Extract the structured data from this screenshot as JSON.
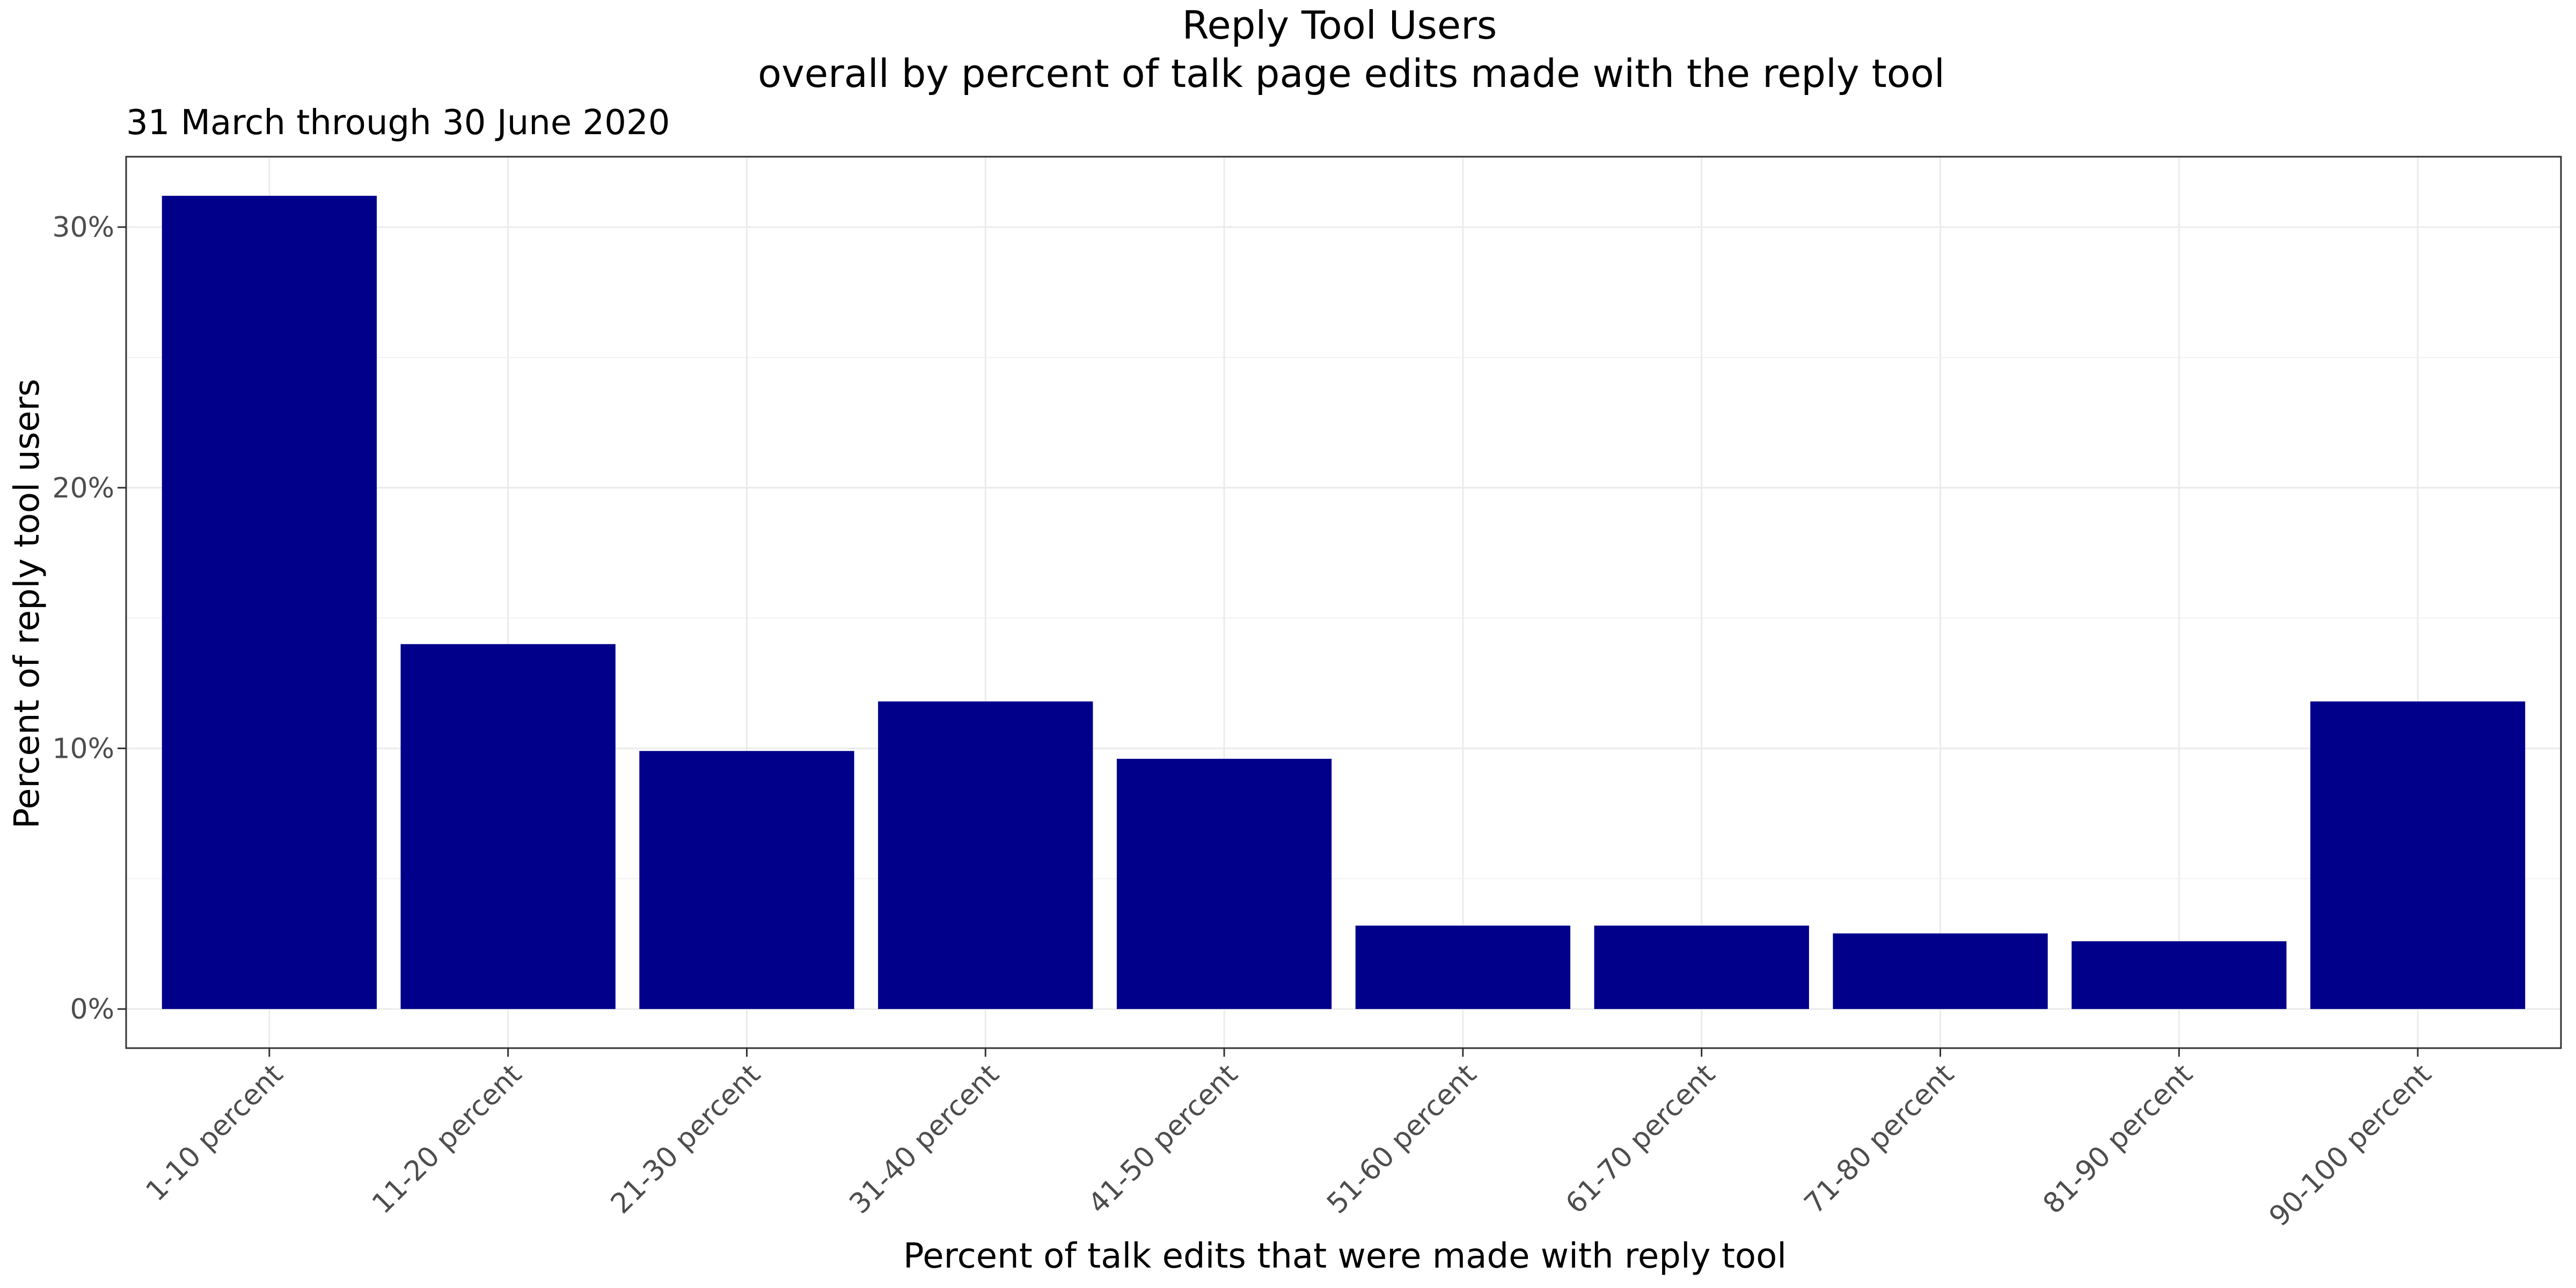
{
  "chart_data": {
    "type": "bar",
    "title": "Reply Tool Users",
    "subtitle_line": "overall by percent of talk page edits made with the reply tool",
    "caption": "31 March through 30 June 2020",
    "xlabel": "Percent of talk edits that were made with reply tool",
    "ylabel": "Percent of reply tool users",
    "categories": [
      "1-10 percent",
      "11-20 percent",
      "21-30 percent",
      "31-40 percent",
      "41-50 percent",
      "51-60 percent",
      "61-70 percent",
      "71-80 percent",
      "81-90 percent",
      "90-100 percent"
    ],
    "values": [
      31.2,
      14.0,
      9.9,
      11.8,
      9.6,
      3.2,
      3.2,
      2.9,
      2.6,
      11.8
    ],
    "ylim": [
      -1.5,
      32.7
    ],
    "yticks": [
      0,
      10,
      20,
      30
    ],
    "ytick_labels": [
      "0%",
      "10%",
      "20%",
      "30%"
    ],
    "bar_color": "#00008b",
    "grid": true,
    "legend": "none"
  }
}
